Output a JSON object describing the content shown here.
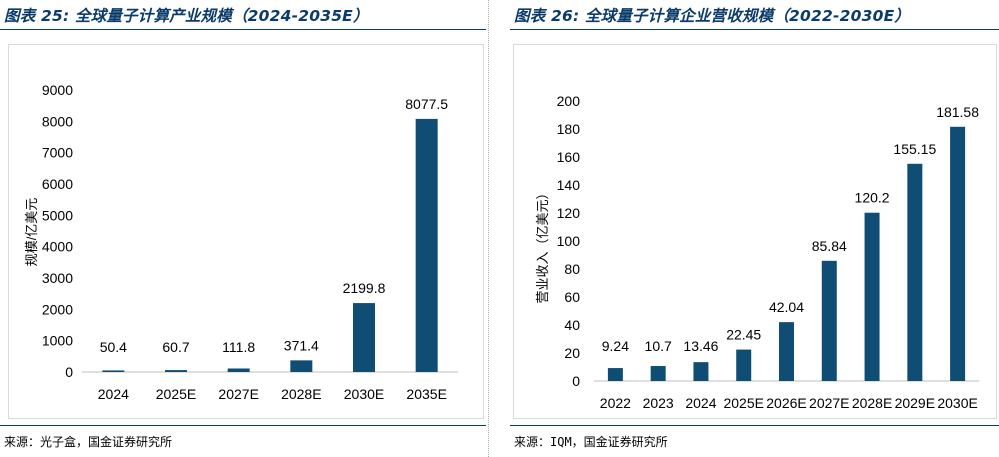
{
  "left": {
    "title": "图表 25: 全球量子计算产业规模（2024-2035E）",
    "source": "来源：光子盒，国金证券研究所"
  },
  "right": {
    "title": "图表 26: 全球量子计算企业营收规模（2022-2030E）",
    "source": "来源：IQM，国金证券研究所"
  },
  "colors": {
    "bar": "#0f4d74",
    "title": "#0b3b6b",
    "axis": "#bfbfbf"
  },
  "chart_data": [
    {
      "type": "bar",
      "title": "全球量子计算产业规模（2024-2035E）",
      "xlabel": "",
      "ylabel": "规模/亿美元",
      "categories": [
        "2024",
        "2025E",
        "2027E",
        "2028E",
        "2030E",
        "2035E"
      ],
      "values": [
        50.4,
        60.7,
        111.8,
        371.4,
        2199.8,
        8077.5
      ],
      "value_labels": [
        "50.4",
        "60.7",
        "111.8",
        "371.4",
        "2199.8",
        "8077.5"
      ],
      "ylim": [
        0,
        9000
      ],
      "yticks": [
        0,
        1000,
        2000,
        3000,
        4000,
        5000,
        6000,
        7000,
        8000,
        9000
      ],
      "grid": false
    },
    {
      "type": "bar",
      "title": "全球量子计算企业营收规模（2022-2030E）",
      "xlabel": "",
      "ylabel": "营业收入（亿美元）",
      "categories": [
        "2022",
        "2023",
        "2024",
        "2025E",
        "2026E",
        "2027E",
        "2028E",
        "2029E",
        "2030E"
      ],
      "values": [
        9.24,
        10.7,
        13.46,
        22.45,
        42.04,
        85.84,
        120.2,
        155.15,
        181.58
      ],
      "value_labels": [
        "9.24",
        "10.7",
        "13.46",
        "22.45",
        "42.04",
        "85.84",
        "120.2",
        "155.15",
        "181.58"
      ],
      "ylim": [
        0,
        200
      ],
      "yticks": [
        0,
        20,
        40,
        60,
        80,
        100,
        120,
        140,
        160,
        180,
        200
      ],
      "grid": false
    }
  ]
}
